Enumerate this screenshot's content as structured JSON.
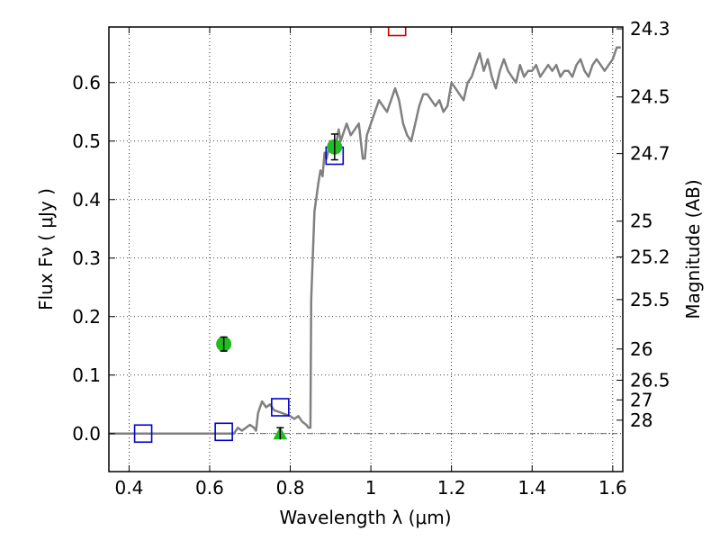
{
  "chart_data": {
    "type": "scatter",
    "xlabel": "Wavelength  λ (μm)",
    "ylabel": "Flux  Fν  ( μJy )",
    "y2label": "Magnitude (AB)",
    "xlim": [
      0.35,
      1.625
    ],
    "ylim": [
      -0.065,
      0.695
    ],
    "grid": true,
    "x_ticks": [
      {
        "value": 0.4,
        "label": "0.4"
      },
      {
        "value": 0.6,
        "label": "0.6"
      },
      {
        "value": 0.8,
        "label": "0.8"
      },
      {
        "value": 1.0,
        "label": "1"
      },
      {
        "value": 1.2,
        "label": "1.2"
      },
      {
        "value": 1.4,
        "label": "1.4"
      },
      {
        "value": 1.6,
        "label": "1.6"
      }
    ],
    "y_ticks": [
      {
        "value": 0.0,
        "label": "0.0"
      },
      {
        "value": 0.1,
        "label": "0.1"
      },
      {
        "value": 0.2,
        "label": "0.2"
      },
      {
        "value": 0.3,
        "label": "0.3"
      },
      {
        "value": 0.4,
        "label": "0.4"
      },
      {
        "value": 0.5,
        "label": "0.5"
      },
      {
        "value": 0.6,
        "label": "0.6"
      }
    ],
    "mag_ticks": [
      {
        "value": 24.3,
        "label": "24.3"
      },
      {
        "value": 24.5,
        "label": "24.5"
      },
      {
        "value": 24.7,
        "label": "24.7"
      },
      {
        "value": 25.0,
        "label": "25"
      },
      {
        "value": 25.2,
        "label": "25.2"
      },
      {
        "value": 25.5,
        "label": "25.5"
      },
      {
        "value": 26.0,
        "label": "26"
      },
      {
        "value": 26.5,
        "label": "26.5"
      },
      {
        "value": 27.0,
        "label": "27"
      },
      {
        "value": 28.0,
        "label": "28"
      }
    ],
    "series": [
      {
        "kind": "line",
        "color": "#808080",
        "x": [
          0.35,
          0.66,
          0.67,
          0.68,
          0.69,
          0.7,
          0.71,
          0.715,
          0.72,
          0.725,
          0.73,
          0.74,
          0.75,
          0.76,
          0.78,
          0.8,
          0.81,
          0.82,
          0.83,
          0.84,
          0.845,
          0.85,
          0.852,
          0.86,
          0.87,
          0.875,
          0.88,
          0.885,
          0.89,
          0.9,
          0.91,
          0.92,
          0.925,
          0.93,
          0.94,
          0.95,
          0.96,
          0.97,
          0.975,
          0.98,
          0.985,
          0.99,
          1.0,
          1.01,
          1.02,
          1.03,
          1.04,
          1.05,
          1.06,
          1.07,
          1.08,
          1.09,
          1.1,
          1.11,
          1.12,
          1.13,
          1.14,
          1.15,
          1.16,
          1.17,
          1.18,
          1.19,
          1.2,
          1.21,
          1.22,
          1.23,
          1.24,
          1.25,
          1.26,
          1.27,
          1.28,
          1.29,
          1.3,
          1.31,
          1.32,
          1.33,
          1.34,
          1.35,
          1.36,
          1.37,
          1.38,
          1.39,
          1.4,
          1.41,
          1.42,
          1.43,
          1.44,
          1.45,
          1.46,
          1.47,
          1.48,
          1.49,
          1.5,
          1.51,
          1.52,
          1.53,
          1.54,
          1.55,
          1.56,
          1.57,
          1.58,
          1.59,
          1.6,
          1.61,
          1.62
        ],
        "y": [
          0.0,
          0.0,
          0.01,
          0.005,
          0.01,
          0.015,
          0.01,
          0.005,
          0.035,
          0.045,
          0.055,
          0.045,
          0.05,
          0.04,
          0.035,
          0.03,
          0.025,
          0.03,
          0.02,
          0.015,
          0.01,
          0.01,
          0.23,
          0.38,
          0.43,
          0.45,
          0.44,
          0.48,
          0.47,
          0.5,
          0.48,
          0.52,
          0.5,
          0.51,
          0.53,
          0.51,
          0.52,
          0.53,
          0.5,
          0.47,
          0.47,
          0.51,
          0.53,
          0.55,
          0.57,
          0.56,
          0.55,
          0.57,
          0.59,
          0.57,
          0.53,
          0.51,
          0.5,
          0.53,
          0.56,
          0.58,
          0.58,
          0.57,
          0.56,
          0.57,
          0.55,
          0.56,
          0.6,
          0.59,
          0.58,
          0.57,
          0.6,
          0.61,
          0.63,
          0.65,
          0.62,
          0.64,
          0.61,
          0.59,
          0.62,
          0.64,
          0.62,
          0.61,
          0.6,
          0.63,
          0.61,
          0.62,
          0.62,
          0.63,
          0.61,
          0.62,
          0.63,
          0.62,
          0.63,
          0.61,
          0.62,
          0.62,
          0.61,
          0.63,
          0.64,
          0.62,
          0.61,
          0.63,
          0.64,
          0.63,
          0.62,
          0.63,
          0.64,
          0.66,
          0.66
        ]
      },
      {
        "kind": "open-square",
        "color": "#0000cc",
        "x": [
          0.435,
          0.635,
          0.775,
          0.91
        ],
        "y": [
          0.0,
          0.003,
          0.045,
          0.475
        ]
      },
      {
        "kind": "open-square-clipped",
        "color": "#cc0000",
        "x": [
          1.065
        ],
        "y": [
          0.695
        ]
      },
      {
        "kind": "filled-circle",
        "color": "#22bb22",
        "x": [
          0.635,
          0.91
        ],
        "y": [
          0.153,
          0.49
        ],
        "yerr": [
          0.012,
          0.022
        ]
      },
      {
        "kind": "filled-triangle",
        "color": "#22bb22",
        "x": [
          0.775
        ],
        "y": [
          0.0
        ],
        "yerr": [
          0.01
        ]
      }
    ]
  }
}
